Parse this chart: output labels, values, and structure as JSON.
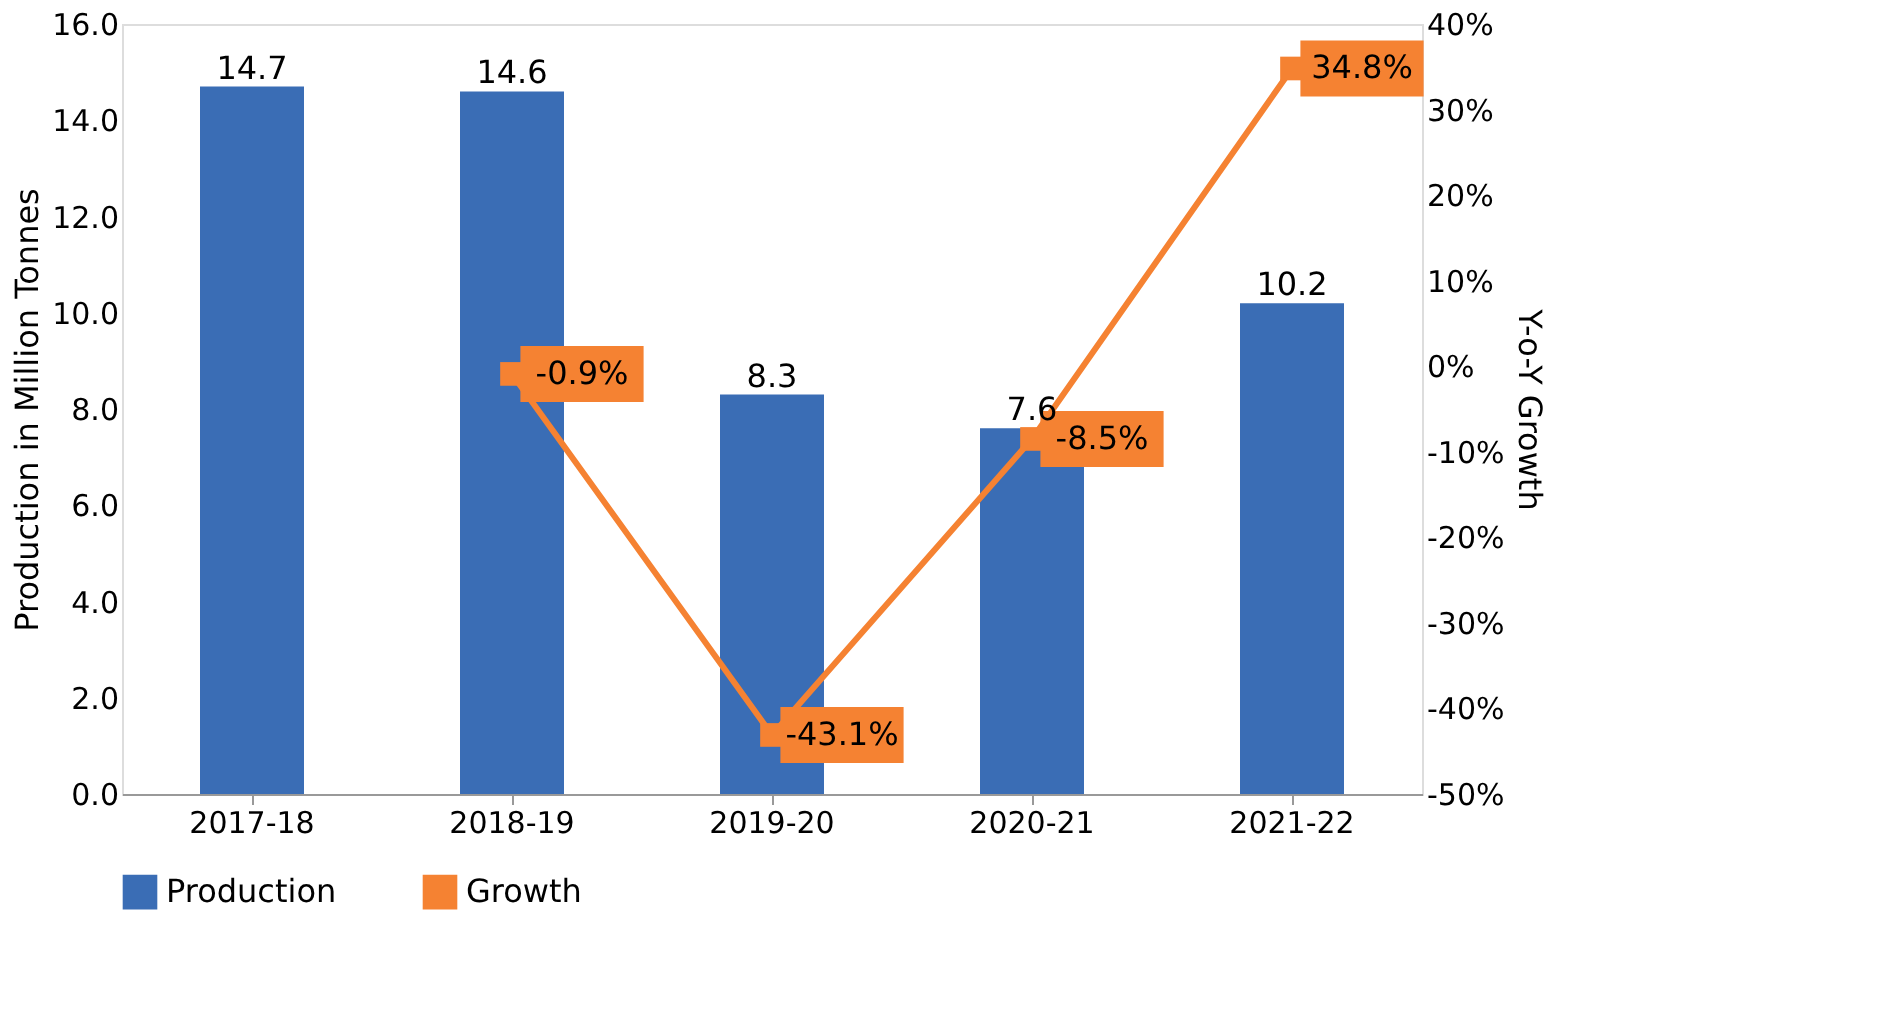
{
  "chart_data": {
    "type": "bar",
    "categories": [
      "2017-18",
      "2018-19",
      "2019-20",
      "2020-21",
      "2021-22"
    ],
    "series": [
      {
        "name": "Production",
        "color": "#3a6db5",
        "values": [
          14.7,
          14.6,
          8.3,
          7.6,
          10.2
        ],
        "value_labels": [
          "14.7",
          "14.6",
          "8.3",
          "7.6",
          "10.2"
        ]
      },
      {
        "name": "Growth",
        "type": "line",
        "axis": "y2",
        "color": "#f58232",
        "marker": "square",
        "values": [
          null,
          -0.9,
          -43.1,
          -8.5,
          34.8
        ],
        "value_labels": [
          null,
          "-0.9%",
          "-43.1%",
          "-8.5%",
          "34.8%"
        ]
      }
    ],
    "ylabel": "Production in Million Tonnes",
    "y2label": "Y-o-Y Growth",
    "ylim": [
      0,
      16
    ],
    "yticks": [
      {
        "value": 0,
        "label": "0.0"
      },
      {
        "value": 2,
        "label": "2.0"
      },
      {
        "value": 4,
        "label": "4.0"
      },
      {
        "value": 6,
        "label": "6.0"
      },
      {
        "value": 8,
        "label": "8.0"
      },
      {
        "value": 10,
        "label": "10.0"
      },
      {
        "value": 12,
        "label": "12.0"
      },
      {
        "value": 14,
        "label": "14.0"
      },
      {
        "value": 16,
        "label": "16.0"
      }
    ],
    "y2lim": [
      -50,
      40
    ],
    "y2ticks": [
      {
        "value": -50,
        "label": "-50%"
      },
      {
        "value": -40,
        "label": "-40%"
      },
      {
        "value": -30,
        "label": "-30%"
      },
      {
        "value": -20,
        "label": "-20%"
      },
      {
        "value": -10,
        "label": "-10%"
      },
      {
        "value": 0,
        "label": "0%"
      },
      {
        "value": 10,
        "label": "10%"
      },
      {
        "value": 20,
        "label": "20%"
      },
      {
        "value": 30,
        "label": "30%"
      },
      {
        "value": 40,
        "label": "40%"
      }
    ],
    "grid": false,
    "legend": "bottom"
  }
}
